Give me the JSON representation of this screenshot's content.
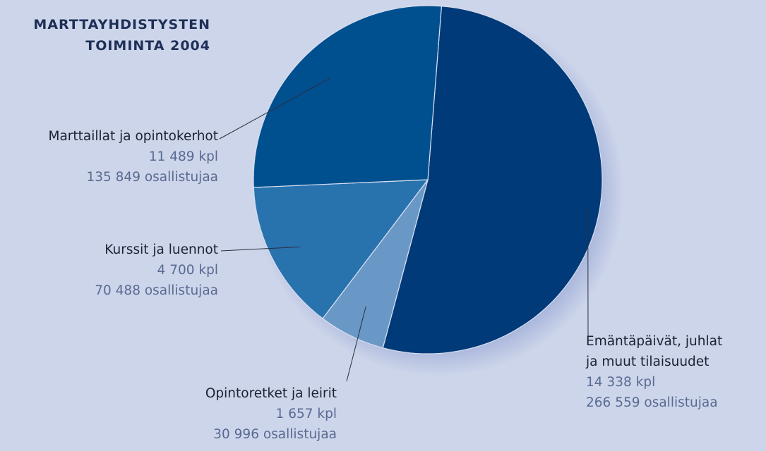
{
  "title_lines": [
    "MARTTAYHDISTYSTEN",
    "TOIMINTA 2004"
  ],
  "chart_data": {
    "type": "pie",
    "title": "MARTTAYHDISTYSTEN TOIMINTA 2004",
    "slices": [
      {
        "name": "Emäntäpäivät, juhlat ja muut tilaisuudet",
        "name_lines": [
          "Emäntäpäivät, juhlat",
          "ja muut tilaisuudet"
        ],
        "kpl": 14338,
        "kpl_label": "14 338 kpl",
        "participants": 266559,
        "participants_label": "266 559 osallistujaa",
        "color": "#003a78"
      },
      {
        "name": "Opintoretket ja leirit",
        "name_lines": [
          "Opintoretket ja leirit"
        ],
        "kpl": 1657,
        "kpl_label": "1 657 kpl",
        "participants": 30996,
        "participants_label": "30 996 osallistujaa",
        "color": "#6a98c6"
      },
      {
        "name": "Kurssit ja luennot",
        "name_lines": [
          "Kurssit ja luennot"
        ],
        "kpl": 4700,
        "kpl_label": "4 700 kpl",
        "participants": 70488,
        "participants_label": "70 488 osallistujaa",
        "color": "#2872ae"
      },
      {
        "name": "Marttaillat ja opintokerhot",
        "name_lines": [
          "Marttaillat ja opintokerhot"
        ],
        "kpl": 11489,
        "kpl_label": "11 489 kpl",
        "participants": 135849,
        "participants_label": "135 849 osallistujaa",
        "color": "#00508f"
      }
    ],
    "value_key": "participants",
    "start_angle_deg": 4.5,
    "direction": "clockwise"
  }
}
